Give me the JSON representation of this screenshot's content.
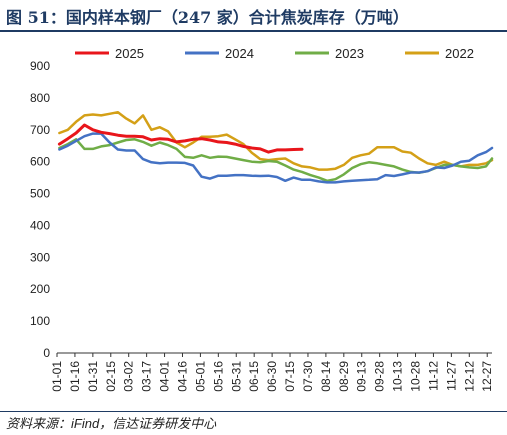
{
  "header": {
    "title": "图 51：国内样本钢厂（247 家）合计焦炭库存（万吨）"
  },
  "footer": {
    "source": "资料来源：iFind，信达证券研发中心"
  },
  "chart_data": {
    "type": "line",
    "title": "图 51：国内样本钢厂（247 家）合计焦炭库存（万吨）",
    "xlabel": "",
    "ylabel": "",
    "ylim": [
      0,
      900
    ],
    "yticks": [
      0,
      100,
      200,
      300,
      400,
      500,
      600,
      700,
      800,
      900
    ],
    "grid": false,
    "legend_position": "top",
    "x_ticks": [
      "01-01",
      "01-16",
      "01-31",
      "02-15",
      "03-02",
      "03-17",
      "04-01",
      "04-16",
      "05-01",
      "05-16",
      "05-31",
      "06-15",
      "06-30",
      "07-15",
      "07-30",
      "08-14",
      "08-29",
      "09-13",
      "09-28",
      "10-13",
      "10-28",
      "11-12",
      "11-27",
      "12-12",
      "12-27"
    ],
    "series": [
      {
        "name": "2025",
        "color": "#e8161b",
        "points": [
          [
            "01-03",
            655
          ],
          [
            "01-10",
            672
          ],
          [
            "01-17",
            690
          ],
          [
            "01-24",
            715
          ],
          [
            "01-31",
            700
          ],
          [
            "02-07",
            692
          ],
          [
            "02-14",
            688
          ],
          [
            "02-21",
            683
          ],
          [
            "02-28",
            680
          ],
          [
            "03-07",
            680
          ],
          [
            "03-14",
            678
          ],
          [
            "03-21",
            668
          ],
          [
            "03-28",
            672
          ],
          [
            "04-04",
            670
          ],
          [
            "04-11",
            662
          ],
          [
            "04-18",
            665
          ],
          [
            "04-25",
            670
          ],
          [
            "05-02",
            672
          ],
          [
            "05-09",
            668
          ],
          [
            "05-16",
            662
          ],
          [
            "05-23",
            660
          ],
          [
            "05-30",
            655
          ],
          [
            "06-06",
            648
          ],
          [
            "06-13",
            643
          ],
          [
            "06-20",
            640
          ],
          [
            "06-27",
            630
          ],
          [
            "07-04",
            637
          ],
          [
            "07-11",
            637
          ],
          [
            "07-18",
            638
          ],
          [
            "07-25",
            639
          ]
        ]
      },
      {
        "name": "2024",
        "color": "#4472c4",
        "points": [
          [
            "01-03",
            638
          ],
          [
            "01-10",
            650
          ],
          [
            "01-17",
            665
          ],
          [
            "01-24",
            680
          ],
          [
            "01-31",
            688
          ],
          [
            "02-07",
            688
          ],
          [
            "02-14",
            660
          ],
          [
            "02-21",
            638
          ],
          [
            "02-28",
            635
          ],
          [
            "03-07",
            635
          ],
          [
            "03-14",
            608
          ],
          [
            "03-21",
            598
          ],
          [
            "03-28",
            595
          ],
          [
            "04-04",
            597
          ],
          [
            "04-11",
            597
          ],
          [
            "04-18",
            596
          ],
          [
            "04-25",
            588
          ],
          [
            "05-02",
            553
          ],
          [
            "05-09",
            547
          ],
          [
            "05-16",
            556
          ],
          [
            "05-23",
            556
          ],
          [
            "05-30",
            558
          ],
          [
            "06-06",
            558
          ],
          [
            "06-13",
            556
          ],
          [
            "06-20",
            555
          ],
          [
            "06-27",
            556
          ],
          [
            "07-04",
            552
          ],
          [
            "07-11",
            540
          ],
          [
            "07-18",
            550
          ],
          [
            "07-25",
            543
          ],
          [
            "08-01",
            543
          ],
          [
            "08-08",
            538
          ],
          [
            "08-15",
            535
          ],
          [
            "08-22",
            535
          ],
          [
            "08-29",
            538
          ],
          [
            "09-05",
            540
          ],
          [
            "09-12",
            542
          ],
          [
            "09-19",
            543
          ],
          [
            "09-26",
            545
          ],
          [
            "10-03",
            558
          ],
          [
            "10-10",
            555
          ],
          [
            "10-17",
            560
          ],
          [
            "10-24",
            566
          ],
          [
            "10-31",
            566
          ],
          [
            "11-07",
            570
          ],
          [
            "11-14",
            582
          ],
          [
            "11-21",
            580
          ],
          [
            "11-28",
            588
          ],
          [
            "12-05",
            600
          ],
          [
            "12-12",
            603
          ],
          [
            "12-19",
            620
          ],
          [
            "12-26",
            630
          ],
          [
            "12-31",
            643
          ]
        ]
      },
      {
        "name": "2023",
        "color": "#70ad47",
        "points": [
          [
            "01-03",
            643
          ],
          [
            "01-10",
            655
          ],
          [
            "01-17",
            670
          ],
          [
            "01-24",
            640
          ],
          [
            "01-31",
            640
          ],
          [
            "02-07",
            648
          ],
          [
            "02-14",
            652
          ],
          [
            "02-21",
            660
          ],
          [
            "02-28",
            668
          ],
          [
            "03-07",
            670
          ],
          [
            "03-14",
            662
          ],
          [
            "03-21",
            650
          ],
          [
            "03-28",
            660
          ],
          [
            "04-04",
            652
          ],
          [
            "04-11",
            640
          ],
          [
            "04-18",
            615
          ],
          [
            "04-25",
            612
          ],
          [
            "05-02",
            620
          ],
          [
            "05-09",
            612
          ],
          [
            "05-16",
            616
          ],
          [
            "05-23",
            615
          ],
          [
            "05-30",
            610
          ],
          [
            "06-06",
            605
          ],
          [
            "06-13",
            600
          ],
          [
            "06-20",
            598
          ],
          [
            "06-27",
            602
          ],
          [
            "07-04",
            600
          ],
          [
            "07-11",
            588
          ],
          [
            "07-18",
            575
          ],
          [
            "07-25",
            568
          ],
          [
            "08-01",
            558
          ],
          [
            "08-08",
            550
          ],
          [
            "08-15",
            540
          ],
          [
            "08-22",
            545
          ],
          [
            "08-29",
            560
          ],
          [
            "09-05",
            580
          ],
          [
            "09-12",
            592
          ],
          [
            "09-19",
            598
          ],
          [
            "09-26",
            595
          ],
          [
            "10-03",
            590
          ],
          [
            "10-10",
            585
          ],
          [
            "10-17",
            575
          ],
          [
            "10-24",
            568
          ],
          [
            "10-31",
            565
          ],
          [
            "11-07",
            570
          ],
          [
            "11-14",
            580
          ],
          [
            "11-21",
            590
          ],
          [
            "11-28",
            590
          ],
          [
            "12-05",
            585
          ],
          [
            "12-12",
            582
          ],
          [
            "12-19",
            580
          ],
          [
            "12-26",
            585
          ],
          [
            "12-31",
            610
          ]
        ]
      },
      {
        "name": "2022",
        "color": "#d4a017",
        "points": [
          [
            "01-03",
            690
          ],
          [
            "01-10",
            700
          ],
          [
            "01-17",
            725
          ],
          [
            "01-24",
            745
          ],
          [
            "01-31",
            748
          ],
          [
            "02-07",
            745
          ],
          [
            "02-14",
            750
          ],
          [
            "02-21",
            755
          ],
          [
            "02-28",
            735
          ],
          [
            "03-07",
            720
          ],
          [
            "03-14",
            745
          ],
          [
            "03-21",
            700
          ],
          [
            "03-28",
            708
          ],
          [
            "04-04",
            695
          ],
          [
            "04-11",
            660
          ],
          [
            "04-18",
            645
          ],
          [
            "04-25",
            660
          ],
          [
            "05-02",
            678
          ],
          [
            "05-09",
            678
          ],
          [
            "05-16",
            680
          ],
          [
            "05-23",
            685
          ],
          [
            "05-30",
            670
          ],
          [
            "06-06",
            655
          ],
          [
            "06-13",
            628
          ],
          [
            "06-20",
            608
          ],
          [
            "06-27",
            605
          ],
          [
            "07-04",
            608
          ],
          [
            "07-11",
            610
          ],
          [
            "07-18",
            595
          ],
          [
            "07-25",
            585
          ],
          [
            "08-01",
            582
          ],
          [
            "08-08",
            575
          ],
          [
            "08-15",
            575
          ],
          [
            "08-22",
            578
          ],
          [
            "08-29",
            590
          ],
          [
            "09-05",
            612
          ],
          [
            "09-12",
            620
          ],
          [
            "09-19",
            625
          ],
          [
            "09-26",
            645
          ],
          [
            "10-03",
            645
          ],
          [
            "10-10",
            645
          ],
          [
            "10-17",
            632
          ],
          [
            "10-24",
            628
          ],
          [
            "10-31",
            610
          ],
          [
            "11-07",
            595
          ],
          [
            "11-14",
            590
          ],
          [
            "11-21",
            600
          ],
          [
            "11-28",
            590
          ],
          [
            "12-05",
            585
          ],
          [
            "12-12",
            590
          ],
          [
            "12-19",
            590
          ],
          [
            "12-26",
            595
          ],
          [
            "12-31",
            605
          ]
        ]
      }
    ]
  }
}
